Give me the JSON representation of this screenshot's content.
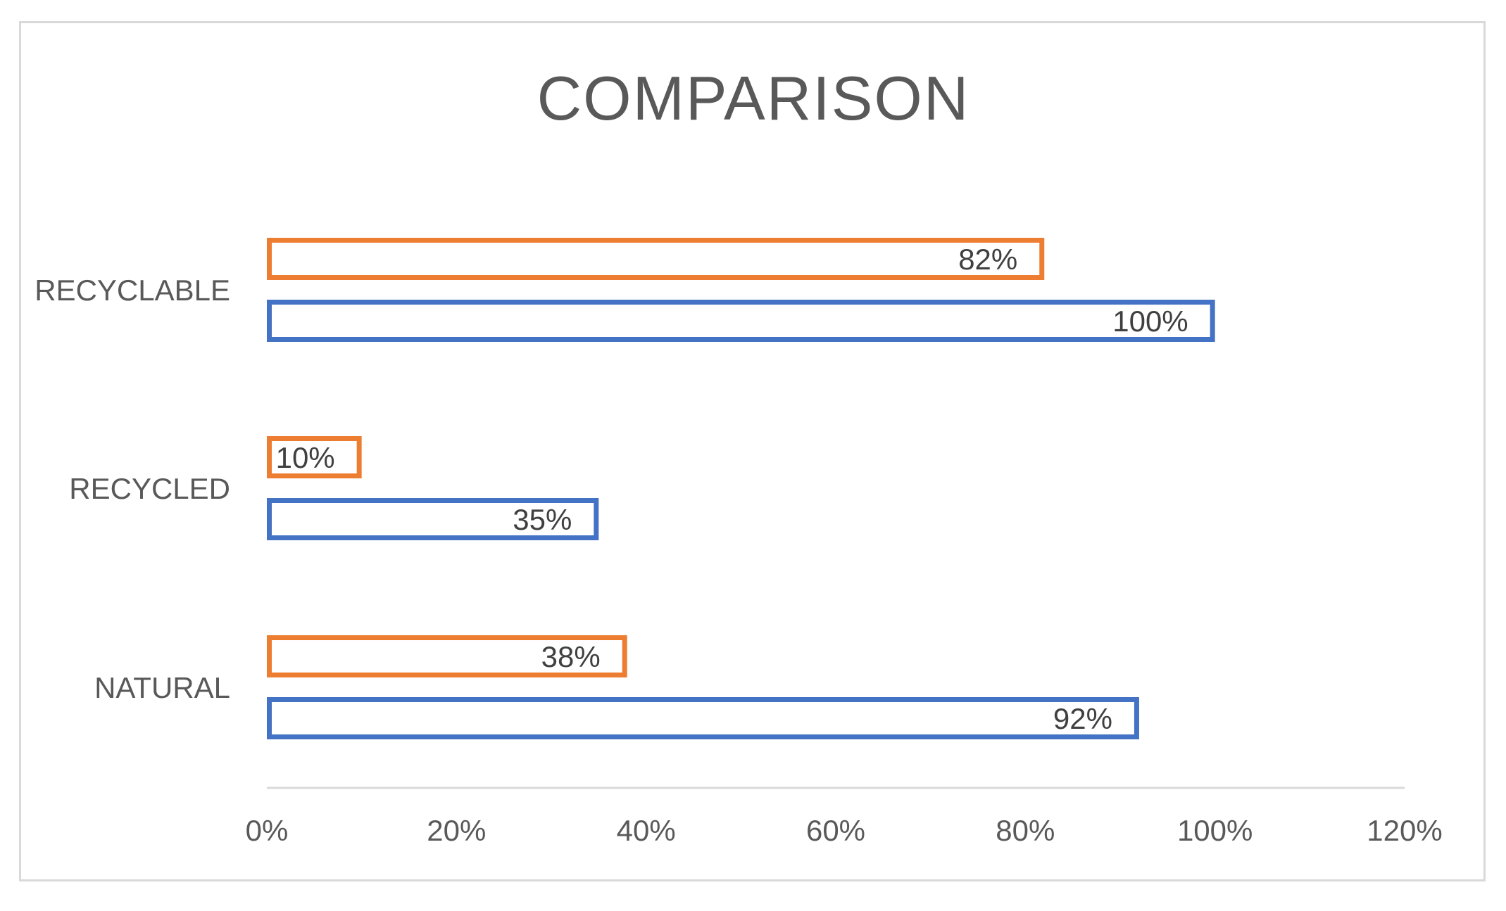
{
  "chart_data": {
    "type": "bar",
    "orientation": "horizontal",
    "title": "COMPARISON",
    "xlabel": "",
    "ylabel": "",
    "categories": [
      "RECYCLABLE",
      "RECYCLED",
      "NATURAL"
    ],
    "series": [
      {
        "color": "#ED7D31",
        "values": [
          82,
          10,
          38
        ],
        "labels": [
          "82%",
          "10%",
          "38%"
        ]
      },
      {
        "color": "#4472C4",
        "values": [
          100,
          35,
          92
        ],
        "labels": [
          "100%",
          "35%",
          "92%"
        ]
      }
    ],
    "xlim": [
      0,
      120
    ],
    "ticks": [
      0,
      20,
      40,
      60,
      80,
      100,
      120
    ],
    "tick_labels": [
      "0%",
      "20%",
      "40%",
      "60%",
      "80%",
      "100%",
      "120%"
    ],
    "grid": false,
    "legend": "none",
    "bar_style": "outline"
  }
}
